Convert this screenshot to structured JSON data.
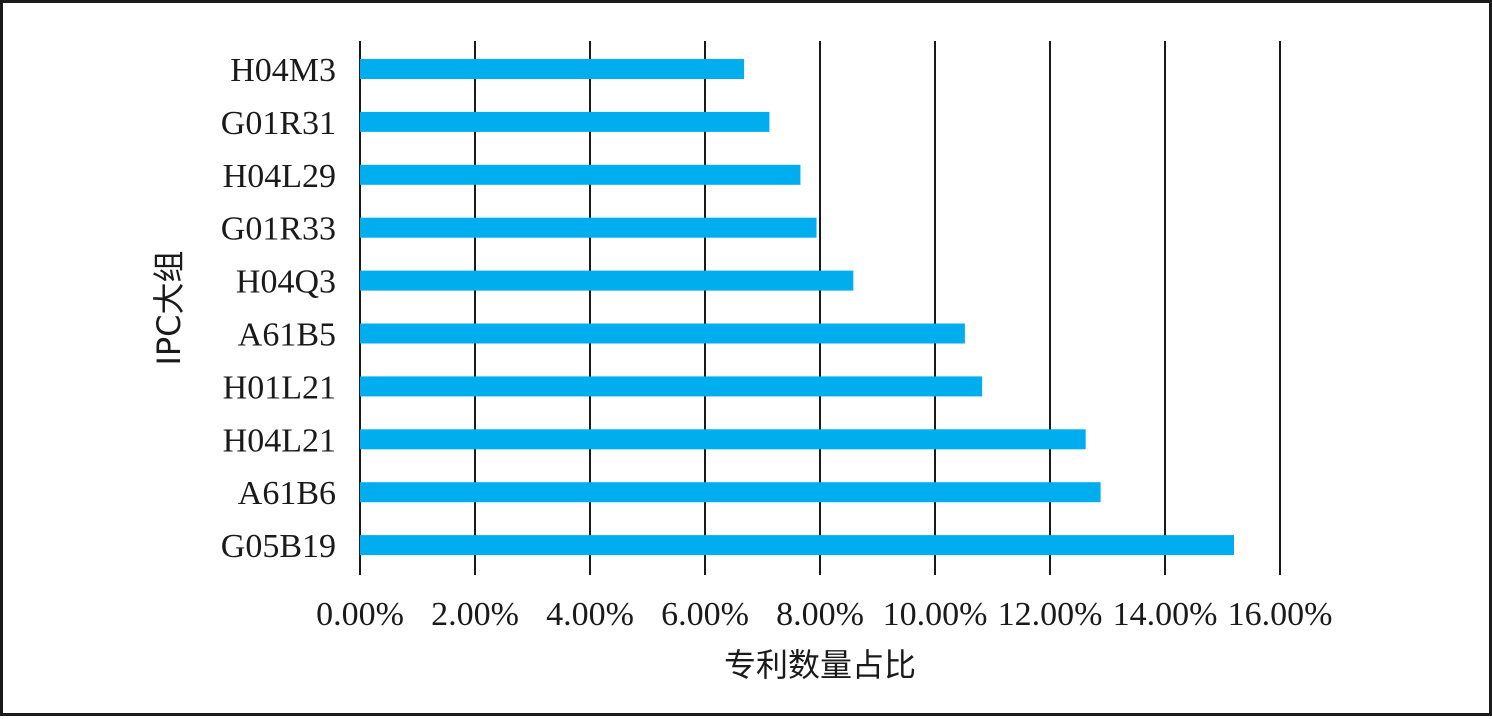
{
  "chart_data": {
    "type": "bar",
    "orientation": "horizontal",
    "title": "",
    "xlabel": "专利数量占比",
    "ylabel": "IPC大组",
    "categories": [
      "H04M3",
      "G01R31",
      "H04L29",
      "G01R33",
      "H04Q3",
      "A61B5",
      "H01L21",
      "H04L21",
      "A61B6",
      "G05B19"
    ],
    "values": [
      6.68,
      7.12,
      7.66,
      7.94,
      8.58,
      10.52,
      10.82,
      12.62,
      12.88,
      15.2
    ],
    "xlim": [
      0,
      16
    ],
    "x_ticks": [
      0,
      2,
      4,
      6,
      8,
      10,
      12,
      14,
      16
    ],
    "x_tick_labels": [
      "0.00%",
      "2.00%",
      "4.00%",
      "6.00%",
      "8.00%",
      "10.00%",
      "12.00%",
      "14.00%",
      "16.00%"
    ],
    "grid": "vertical",
    "legend": "none",
    "bar_color": "#00AEEF",
    "grid_color": "#1a1a1a"
  }
}
